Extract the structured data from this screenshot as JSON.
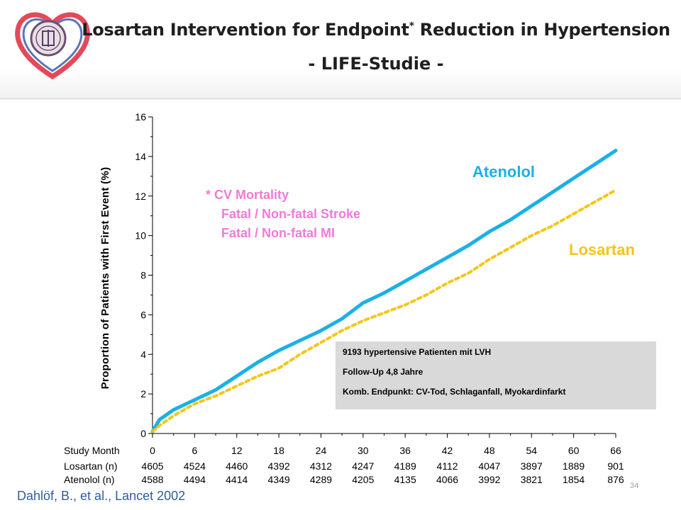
{
  "slide": {
    "title": "Losartan Intervention for Endpoint",
    "title_asterisk": "*",
    "title_rest": " Reduction in Hypertension",
    "subtitle": "- LIFE-Studie -",
    "citation": "Dahlöf, B., et al., Lancet 2002",
    "page_number": "34"
  },
  "endpoints": {
    "line1": "* CV Mortality",
    "line2": "Fatal / Non-fatal Stroke",
    "line3": "Fatal / Non-fatal MI",
    "color": "#f07ad8"
  },
  "infobox": {
    "line1": "9193 hypertensive Patienten mit LVH",
    "line2": "Follow-Up 4,8 Jahre",
    "line3": "Komb. Endpunkt: CV-Tod, Schlaganfall, Myokardinfarkt"
  },
  "chart_data": {
    "type": "line",
    "title": "",
    "ylabel": "Proportion of Patients with First Event (%)",
    "xlabel": "Study Month",
    "xlim": [
      0,
      66
    ],
    "ylim": [
      0,
      16
    ],
    "yticks": [
      0,
      2,
      4,
      6,
      8,
      10,
      12,
      14,
      16
    ],
    "xticks": [
      0,
      6,
      12,
      18,
      24,
      30,
      36,
      42,
      48,
      54,
      60,
      66
    ],
    "series": [
      {
        "name": "Atenolol",
        "color": "#1ab0e8",
        "style": "solid",
        "x": [
          0,
          1,
          3,
          6,
          9,
          12,
          15,
          18,
          21,
          24,
          27,
          30,
          33,
          36,
          39,
          42,
          45,
          48,
          51,
          54,
          57,
          60,
          63,
          66
        ],
        "y": [
          0.1,
          0.7,
          1.2,
          1.7,
          2.2,
          2.9,
          3.6,
          4.2,
          4.7,
          5.2,
          5.8,
          6.6,
          7.1,
          7.7,
          8.3,
          8.9,
          9.5,
          10.2,
          10.8,
          11.5,
          12.2,
          12.9,
          13.6,
          14.3
        ]
      },
      {
        "name": "Losartan",
        "color": "#f5c518",
        "style": "dashed",
        "x": [
          0,
          1,
          3,
          6,
          9,
          12,
          15,
          18,
          21,
          24,
          27,
          30,
          33,
          36,
          39,
          42,
          45,
          48,
          51,
          54,
          57,
          60,
          63,
          66
        ],
        "y": [
          0.1,
          0.4,
          0.9,
          1.5,
          1.9,
          2.4,
          2.9,
          3.3,
          4.0,
          4.6,
          5.2,
          5.7,
          6.1,
          6.5,
          7.0,
          7.6,
          8.1,
          8.8,
          9.4,
          10.0,
          10.5,
          11.1,
          11.7,
          12.3
        ]
      }
    ],
    "at_risk": {
      "label_row": "Study Month",
      "rows": [
        {
          "label": "Losartan (n)",
          "values": [
            "4605",
            "4524",
            "4460",
            "4392",
            "4312",
            "4247",
            "4189",
            "4112",
            "4047",
            "3897",
            "1889",
            "901"
          ]
        },
        {
          "label": "Atenolol (n)",
          "values": [
            "4588",
            "4494",
            "4414",
            "4349",
            "4289",
            "4205",
            "4135",
            "4066",
            "3992",
            "3821",
            "1854",
            "876"
          ]
        }
      ]
    }
  }
}
